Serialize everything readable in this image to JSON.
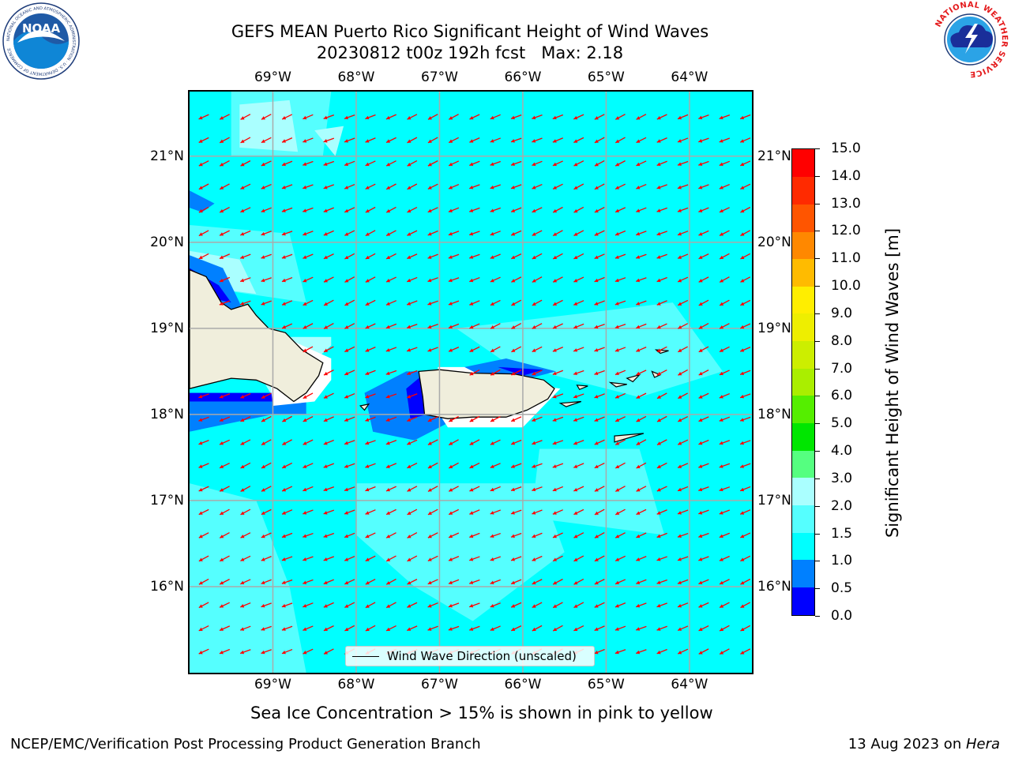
{
  "header": {
    "title_line1": "GEFS MEAN Puerto Rico Significant Height of Wind Waves",
    "title_line2": "20230812 t00z 192h fcst   Max: 2.18"
  },
  "logos": {
    "noaa_text": "NOAA",
    "noaa_ring_text": "NATIONAL OCEANIC AND ATMOSPHERIC ADMINISTRATION · U.S. DEPARTMENT OF COMMERCE",
    "nws_ring_text": "NATIONAL WEATHER SERVICE"
  },
  "map": {
    "lon_range": [
      -70.0,
      -63.25
    ],
    "lat_range": [
      15.0,
      21.75
    ],
    "lon_ticks": [
      {
        "value": -69,
        "label": "69°W"
      },
      {
        "value": -68,
        "label": "68°W"
      },
      {
        "value": -67,
        "label": "67°W"
      },
      {
        "value": -66,
        "label": "66°W"
      },
      {
        "value": -65,
        "label": "65°W"
      },
      {
        "value": -64,
        "label": "64°W"
      }
    ],
    "lat_ticks": [
      {
        "value": 21,
        "label": "21°N"
      },
      {
        "value": 20,
        "label": "20°N"
      },
      {
        "value": 19,
        "label": "19°N"
      },
      {
        "value": 18,
        "label": "18°N"
      },
      {
        "value": 17,
        "label": "17°N"
      },
      {
        "value": 16,
        "label": "16°N"
      }
    ],
    "gridlines": true,
    "land_color": "#f0eedc",
    "arrow_color": "#ff0000",
    "legend_label": "Wind Wave Direction (unscaled)"
  },
  "colorbar": {
    "title": "Significant Height of Wind Waves [m]",
    "bins": [
      {
        "from": 0.0,
        "to": 0.5,
        "color": "#0000ff"
      },
      {
        "from": 0.5,
        "to": 1.0,
        "color": "#0080ff"
      },
      {
        "from": 1.0,
        "to": 1.5,
        "color": "#00ffff"
      },
      {
        "from": 1.5,
        "to": 2.0,
        "color": "#55ffff"
      },
      {
        "from": 2.0,
        "to": 3.0,
        "color": "#aaffff"
      },
      {
        "from": 3.0,
        "to": 4.0,
        "color": "#55ff80"
      },
      {
        "from": 4.0,
        "to": 5.0,
        "color": "#00e600"
      },
      {
        "from": 5.0,
        "to": 6.0,
        "color": "#55ee00"
      },
      {
        "from": 6.0,
        "to": 7.0,
        "color": "#aaee00"
      },
      {
        "from": 7.0,
        "to": 8.0,
        "color": "#ccee00"
      },
      {
        "from": 8.0,
        "to": 9.0,
        "color": "#eeee00"
      },
      {
        "from": 9.0,
        "to": 10.0,
        "color": "#ffee00"
      },
      {
        "from": 10.0,
        "to": 11.0,
        "color": "#ffbb00"
      },
      {
        "from": 11.0,
        "to": 12.0,
        "color": "#ff8800"
      },
      {
        "from": 12.0,
        "to": 13.0,
        "color": "#ff5500"
      },
      {
        "from": 13.0,
        "to": 14.0,
        "color": "#ff2a00"
      },
      {
        "from": 14.0,
        "to": 15.0,
        "color": "#ff0000"
      }
    ],
    "tick_labels": [
      "0.0",
      "0.5",
      "1.0",
      "1.5",
      "2.0",
      "3.0",
      "4.0",
      "5.0",
      "6.0",
      "7.0",
      "8.0",
      "9.0",
      "10.0",
      "11.0",
      "12.0",
      "13.0",
      "14.0",
      "15.0"
    ]
  },
  "subtitle": "Sea Ice Concentration > 15% is shown in pink to yellow",
  "footer": {
    "left": "NCEP/EMC/Verification Post Processing Product Generation Branch",
    "right_date": "13 Aug 2023 on ",
    "right_host": "Hera"
  }
}
